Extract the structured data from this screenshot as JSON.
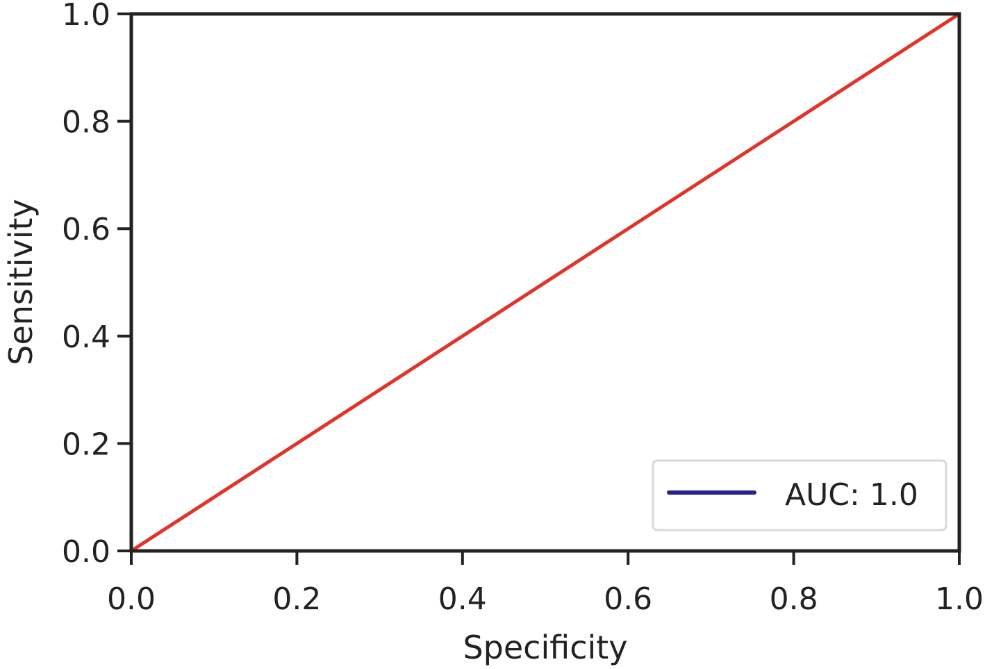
{
  "chart_data": {
    "type": "line",
    "title": "",
    "xlabel": "Specificity",
    "ylabel": "Sensitivity",
    "xlim": [
      0.0,
      1.0
    ],
    "ylim": [
      0.0,
      1.0
    ],
    "xticks": [
      "0.0",
      "0.2",
      "0.4",
      "0.6",
      "0.8",
      "1.0"
    ],
    "yticks": [
      "0.0",
      "0.2",
      "0.4",
      "0.6",
      "0.8",
      "1.0"
    ],
    "grid": false,
    "legend_position": "lower-right",
    "series": [
      {
        "name": "AUC: 1.0",
        "color": "#2a1f8f",
        "x": [
          0.0,
          1.0
        ],
        "y": [
          1.0,
          1.0
        ],
        "in_legend": true
      },
      {
        "color": "#e0342a",
        "x": [
          0.0,
          1.0
        ],
        "y": [
          0.0,
          1.0
        ],
        "in_legend": false
      }
    ]
  }
}
